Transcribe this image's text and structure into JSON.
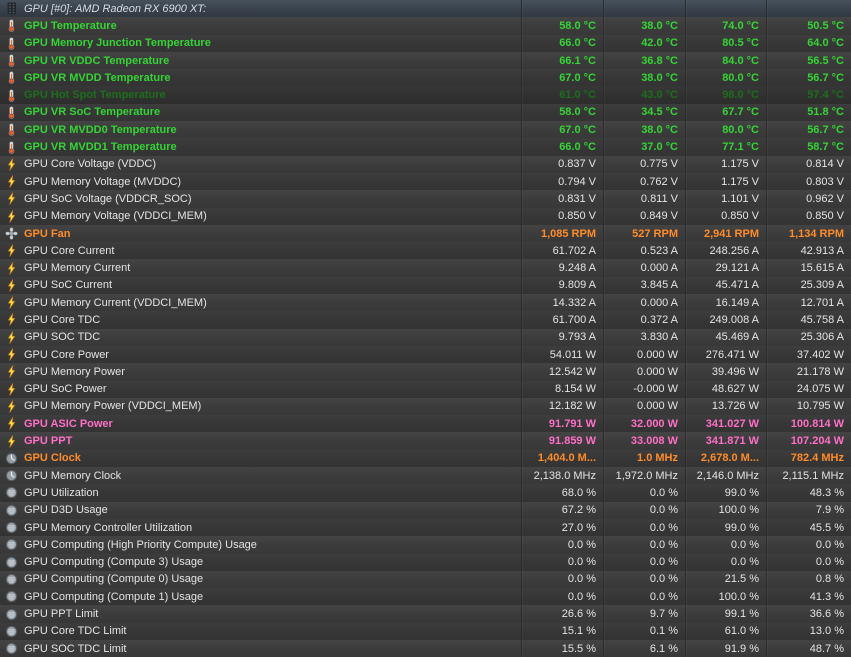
{
  "header": {
    "title": "GPU [#0]: AMD Radeon RX 6900 XT:",
    "icon": "gpu-chip-icon"
  },
  "colors": {
    "temperature_green": "#35d435",
    "temperature_dim_green": "#1d6e1d",
    "fan_clock_orange": "#ff8c28",
    "power_pink": "#ff6ec7",
    "plain_text": "#e4e4e4",
    "header_bg": "#39424c",
    "row_bg": "#3b3b3b"
  },
  "rows": [
    {
      "icon": "thermometer-icon",
      "label": "GPU Temperature",
      "style": "temperature",
      "selected": false,
      "values": [
        "58.0 °C",
        "38.0 °C",
        "74.0 °C",
        "50.5 °C"
      ]
    },
    {
      "icon": "thermometer-icon",
      "label": "GPU Memory Junction Temperature",
      "style": "temperature",
      "selected": false,
      "values": [
        "66.0 °C",
        "42.0 °C",
        "80.5 °C",
        "64.0 °C"
      ]
    },
    {
      "icon": "thermometer-icon",
      "label": "GPU VR VDDC Temperature",
      "style": "temperature",
      "selected": false,
      "values": [
        "66.1 °C",
        "36.8 °C",
        "84.0 °C",
        "56.5 °C"
      ]
    },
    {
      "icon": "thermometer-icon",
      "label": "GPU VR MVDD Temperature",
      "style": "temperature",
      "selected": false,
      "values": [
        "67.0 °C",
        "38.0 °C",
        "80.0 °C",
        "56.7 °C"
      ]
    },
    {
      "icon": "thermometer-icon",
      "label": "GPU Hot Spot Temperature",
      "style": "temperature-dim",
      "selected": true,
      "values": [
        "61.0 °C",
        "43.0 °C",
        "98.0 °C",
        "57.4 °C"
      ]
    },
    {
      "icon": "thermometer-icon",
      "label": "GPU VR SoC Temperature",
      "style": "temperature",
      "selected": false,
      "values": [
        "58.0 °C",
        "34.5 °C",
        "67.7 °C",
        "51.8 °C"
      ]
    },
    {
      "icon": "thermometer-icon",
      "label": "GPU VR MVDD0 Temperature",
      "style": "temperature",
      "selected": false,
      "values": [
        "67.0 °C",
        "38.0 °C",
        "80.0 °C",
        "56.7 °C"
      ]
    },
    {
      "icon": "thermometer-icon",
      "label": "GPU VR MVDD1 Temperature",
      "style": "temperature",
      "selected": false,
      "values": [
        "66.0 °C",
        "37.0 °C",
        "77.1 °C",
        "58.7 °C"
      ]
    },
    {
      "icon": "lightning-icon",
      "label": "GPU Core Voltage (VDDC)",
      "style": "plain",
      "selected": false,
      "values": [
        "0.837 V",
        "0.775 V",
        "1.175 V",
        "0.814 V"
      ]
    },
    {
      "icon": "lightning-icon",
      "label": "GPU Memory Voltage (MVDDC)",
      "style": "plain",
      "selected": false,
      "values": [
        "0.794 V",
        "0.762 V",
        "1.175 V",
        "0.803 V"
      ]
    },
    {
      "icon": "lightning-icon",
      "label": "GPU SoC Voltage (VDDCR_SOC)",
      "style": "plain",
      "selected": false,
      "values": [
        "0.831 V",
        "0.811 V",
        "1.101 V",
        "0.962 V"
      ]
    },
    {
      "icon": "lightning-icon",
      "label": "GPU Memory Voltage (VDDCI_MEM)",
      "style": "plain",
      "selected": false,
      "values": [
        "0.850 V",
        "0.849 V",
        "0.850 V",
        "0.850 V"
      ]
    },
    {
      "icon": "fan-icon",
      "label": "GPU Fan",
      "style": "fan",
      "selected": false,
      "values": [
        "1,085 RPM",
        "527 RPM",
        "2,941 RPM",
        "1,134 RPM"
      ]
    },
    {
      "icon": "lightning-icon",
      "label": "GPU Core Current",
      "style": "plain",
      "selected": false,
      "values": [
        "61.702 A",
        "0.523 A",
        "248.256 A",
        "42.913 A"
      ]
    },
    {
      "icon": "lightning-icon",
      "label": "GPU Memory Current",
      "style": "plain",
      "selected": false,
      "values": [
        "9.248 A",
        "0.000 A",
        "29.121 A",
        "15.615 A"
      ]
    },
    {
      "icon": "lightning-icon",
      "label": "GPU SoC Current",
      "style": "plain",
      "selected": false,
      "values": [
        "9.809 A",
        "3.845 A",
        "45.471 A",
        "25.309 A"
      ]
    },
    {
      "icon": "lightning-icon",
      "label": "GPU Memory Current (VDDCI_MEM)",
      "style": "plain",
      "selected": false,
      "values": [
        "14.332 A",
        "0.000 A",
        "16.149 A",
        "12.701 A"
      ]
    },
    {
      "icon": "lightning-icon",
      "label": "GPU Core TDC",
      "style": "plain",
      "selected": false,
      "values": [
        "61.700 A",
        "0.372 A",
        "249.008 A",
        "45.758 A"
      ]
    },
    {
      "icon": "lightning-icon",
      "label": "GPU SOC TDC",
      "style": "plain",
      "selected": false,
      "values": [
        "9.793 A",
        "3.830 A",
        "45.469 A",
        "25.306 A"
      ]
    },
    {
      "icon": "lightning-icon",
      "label": "GPU Core Power",
      "style": "plain",
      "selected": false,
      "values": [
        "54.011 W",
        "0.000 W",
        "276.471 W",
        "37.402 W"
      ]
    },
    {
      "icon": "lightning-icon",
      "label": "GPU Memory Power",
      "style": "plain",
      "selected": false,
      "values": [
        "12.542 W",
        "0.000 W",
        "39.496 W",
        "21.178 W"
      ]
    },
    {
      "icon": "lightning-icon",
      "label": "GPU SoC Power",
      "style": "plain",
      "selected": false,
      "values": [
        "8.154 W",
        "-0.000 W",
        "48.627 W",
        "24.075 W"
      ]
    },
    {
      "icon": "lightning-icon",
      "label": "GPU Memory Power (VDDCI_MEM)",
      "style": "plain",
      "selected": false,
      "values": [
        "12.182 W",
        "0.000 W",
        "13.726 W",
        "10.795 W"
      ]
    },
    {
      "icon": "lightning-icon",
      "label": "GPU ASIC Power",
      "style": "power",
      "selected": false,
      "values": [
        "91.791 W",
        "32.000 W",
        "341.027 W",
        "100.814 W"
      ]
    },
    {
      "icon": "lightning-icon",
      "label": "GPU PPT",
      "style": "power",
      "selected": false,
      "values": [
        "91.859 W",
        "33.008 W",
        "341.871 W",
        "107.204 W"
      ]
    },
    {
      "icon": "clock-icon",
      "label": "GPU Clock",
      "style": "clock",
      "selected": false,
      "values": [
        "1,404.0 M...",
        "1.0 MHz",
        "2,678.0 M...",
        "782.4 MHz"
      ]
    },
    {
      "icon": "clock-icon",
      "label": "GPU Memory Clock",
      "style": "plain",
      "selected": false,
      "values": [
        "2,138.0 MHz",
        "1,972.0 MHz",
        "2,146.0 MHz",
        "2,115.1 MHz"
      ]
    },
    {
      "icon": "gauge-icon",
      "label": "GPU Utilization",
      "style": "plain",
      "selected": false,
      "values": [
        "68.0 %",
        "0.0 %",
        "99.0 %",
        "48.3 %"
      ]
    },
    {
      "icon": "gauge-icon",
      "label": "GPU D3D Usage",
      "style": "plain",
      "selected": false,
      "values": [
        "67.2 %",
        "0.0 %",
        "100.0 %",
        "7.9 %"
      ]
    },
    {
      "icon": "gauge-icon",
      "label": "GPU Memory Controller Utilization",
      "style": "plain",
      "selected": false,
      "values": [
        "27.0 %",
        "0.0 %",
        "99.0 %",
        "45.5 %"
      ]
    },
    {
      "icon": "gauge-icon",
      "label": "GPU Computing (High Priority Compute) Usage",
      "style": "plain",
      "selected": false,
      "values": [
        "0.0 %",
        "0.0 %",
        "0.0 %",
        "0.0 %"
      ]
    },
    {
      "icon": "gauge-icon",
      "label": "GPU Computing (Compute 3) Usage",
      "style": "plain",
      "selected": false,
      "values": [
        "0.0 %",
        "0.0 %",
        "0.0 %",
        "0.0 %"
      ]
    },
    {
      "icon": "gauge-icon",
      "label": "GPU Computing (Compute 0) Usage",
      "style": "plain",
      "selected": false,
      "values": [
        "0.0 %",
        "0.0 %",
        "21.5 %",
        "0.8 %"
      ]
    },
    {
      "icon": "gauge-icon",
      "label": "GPU Computing (Compute 1) Usage",
      "style": "plain",
      "selected": false,
      "values": [
        "0.0 %",
        "0.0 %",
        "100.0 %",
        "41.3 %"
      ]
    },
    {
      "icon": "gauge-icon",
      "label": "GPU PPT Limit",
      "style": "plain",
      "selected": false,
      "values": [
        "26.6 %",
        "9.7 %",
        "99.1 %",
        "36.6 %"
      ]
    },
    {
      "icon": "gauge-icon",
      "label": "GPU Core TDC Limit",
      "style": "plain",
      "selected": false,
      "values": [
        "15.1 %",
        "0.1 %",
        "61.0 %",
        "13.0 %"
      ]
    },
    {
      "icon": "gauge-icon",
      "label": "GPU SOC TDC Limit",
      "style": "plain",
      "selected": false,
      "values": [
        "15.5 %",
        "6.1 %",
        "91.9 %",
        "48.7 %"
      ]
    }
  ]
}
